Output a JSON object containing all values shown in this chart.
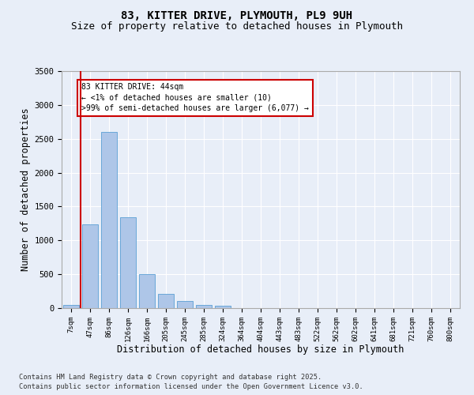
{
  "title_line1": "83, KITTER DRIVE, PLYMOUTH, PL9 9UH",
  "title_line2": "Size of property relative to detached houses in Plymouth",
  "xlabel": "Distribution of detached houses by size in Plymouth",
  "ylabel": "Number of detached properties",
  "categories": [
    "7sqm",
    "47sqm",
    "86sqm",
    "126sqm",
    "166sqm",
    "205sqm",
    "245sqm",
    "285sqm",
    "324sqm",
    "364sqm",
    "404sqm",
    "443sqm",
    "483sqm",
    "522sqm",
    "562sqm",
    "602sqm",
    "641sqm",
    "681sqm",
    "721sqm",
    "760sqm",
    "800sqm"
  ],
  "values": [
    50,
    1240,
    2600,
    1340,
    500,
    210,
    105,
    50,
    35,
    5,
    0,
    0,
    0,
    0,
    0,
    0,
    0,
    0,
    0,
    0,
    0
  ],
  "bar_color": "#aec6e8",
  "bar_edge_color": "#5a9fd4",
  "vline_color": "#cc0000",
  "annotation_text": "83 KITTER DRIVE: 44sqm\n← <1% of detached houses are smaller (10)\n>99% of semi-detached houses are larger (6,077) →",
  "annotation_box_color": "#cc0000",
  "ylim": [
    0,
    3500
  ],
  "yticks": [
    0,
    500,
    1000,
    1500,
    2000,
    2500,
    3000,
    3500
  ],
  "background_color": "#e8eef8",
  "fig_background_color": "#e8eef8",
  "grid_color": "#ffffff",
  "footer_line1": "Contains HM Land Registry data © Crown copyright and database right 2025.",
  "footer_line2": "Contains public sector information licensed under the Open Government Licence v3.0."
}
